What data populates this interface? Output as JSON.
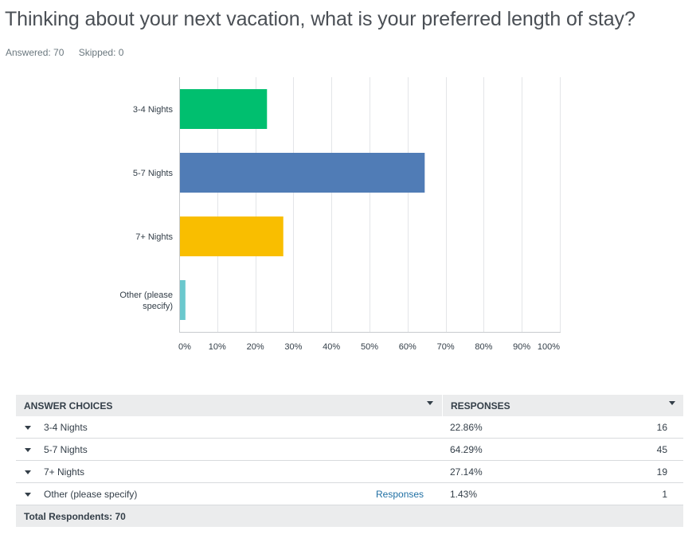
{
  "question": {
    "title": "Thinking about your next vacation, what is your preferred length of stay?",
    "answered": "Answered: 70",
    "skipped": "Skipped: 0"
  },
  "chart_data": {
    "type": "bar",
    "orientation": "horizontal",
    "categories": [
      "3-4 Nights",
      "5-7 Nights",
      "7+ Nights",
      "Other (please specify)"
    ],
    "values": [
      22.86,
      64.29,
      27.14,
      1.43
    ],
    "colors": [
      "#00bf6f",
      "#507cb6",
      "#f9be00",
      "#6bc8cd"
    ],
    "xlim": [
      0,
      100
    ],
    "xticks": [
      "0%",
      "10%",
      "20%",
      "30%",
      "40%",
      "50%",
      "60%",
      "70%",
      "80%",
      "90%",
      "100%"
    ],
    "grid": true
  },
  "table": {
    "header": {
      "choices": "ANSWER CHOICES",
      "responses": "RESPONSES"
    },
    "rows": [
      {
        "label": "3-4 Nights",
        "link": "",
        "pct": "22.86%",
        "count": "16"
      },
      {
        "label": "5-7 Nights",
        "link": "",
        "pct": "64.29%",
        "count": "45"
      },
      {
        "label": "7+ Nights",
        "link": "",
        "pct": "27.14%",
        "count": "19"
      },
      {
        "label": "Other (please specify)",
        "link": "Responses",
        "pct": "1.43%",
        "count": "1"
      }
    ],
    "footer": "Total Respondents: 70"
  }
}
